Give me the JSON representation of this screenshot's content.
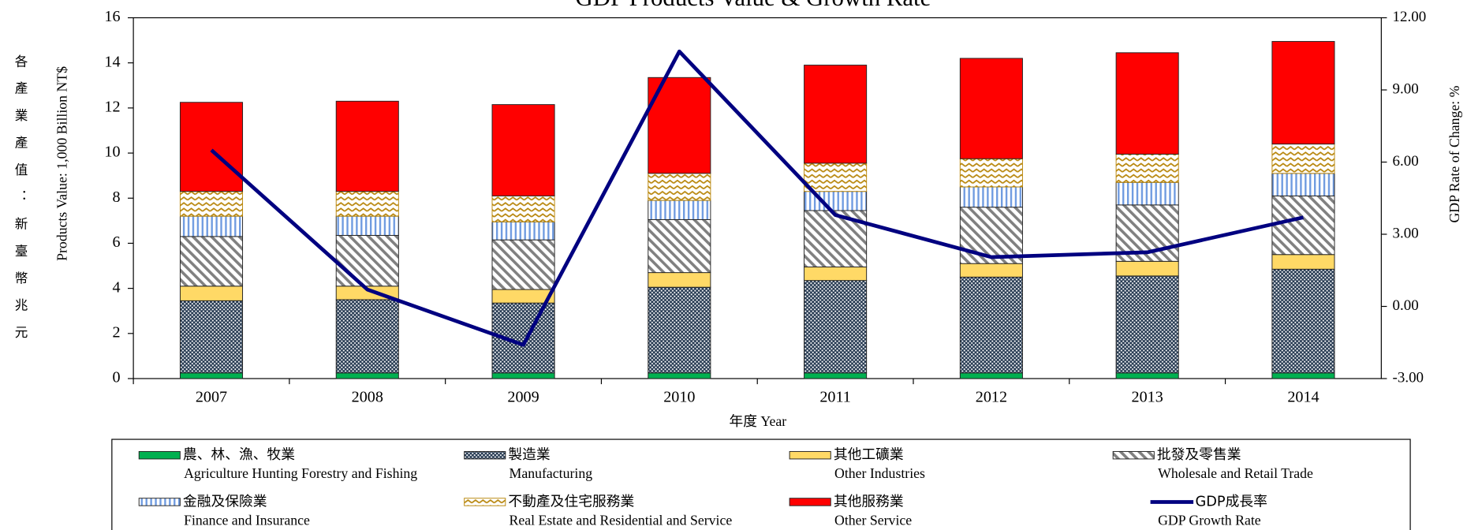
{
  "chart_data": {
    "type": "bar",
    "stacked": true,
    "title": "GDP Products Value & Growth Rate",
    "side_label": "各產業產值：新臺幣兆元",
    "y_label": "Products Value: 1,000 Billion NT$",
    "y2_label": "GDP Rate of Change: %",
    "x_label": "年度 Year",
    "categories": [
      "2007",
      "2008",
      "2009",
      "2010",
      "2011",
      "2012",
      "2013",
      "2014"
    ],
    "ylim": [
      0,
      16
    ],
    "yticks": [
      0,
      2,
      4,
      6,
      8,
      10,
      12,
      14,
      16
    ],
    "y2lim": [
      -3,
      12
    ],
    "y2ticks": [
      {
        "value": -3,
        "label": "-3.00"
      },
      {
        "value": 0,
        "label": "0.00"
      },
      {
        "value": 3,
        "label": "3.00"
      },
      {
        "value": 6,
        "label": "6.00"
      },
      {
        "value": 9,
        "label": "9.00"
      },
      {
        "value": 12,
        "label": "12.00"
      }
    ],
    "series": [
      {
        "name": "農、林、漁、牧業",
        "name_en": "Agriculture Hunting Forestry and Fishing",
        "color": "#00b050",
        "pattern": "solid",
        "values": [
          0.25,
          0.25,
          0.25,
          0.25,
          0.25,
          0.25,
          0.25,
          0.25
        ]
      },
      {
        "name": "製造業",
        "name_en": "Manufacturing",
        "color": "#263a52",
        "pattern": "dots",
        "values": [
          3.2,
          3.25,
          3.1,
          3.8,
          4.1,
          4.25,
          4.3,
          4.6
        ]
      },
      {
        "name": "其他工礦業",
        "name_en": "Other Industries",
        "color": "#ffd966",
        "pattern": "solid",
        "values": [
          0.65,
          0.6,
          0.6,
          0.65,
          0.6,
          0.6,
          0.65,
          0.65
        ]
      },
      {
        "name": "批發及零售業",
        "name_en": "Wholesale and Retail Trade",
        "color": "#808080",
        "pattern": "diagonal",
        "values": [
          2.2,
          2.25,
          2.2,
          2.35,
          2.5,
          2.5,
          2.5,
          2.6
        ]
      },
      {
        "name": "金融及保險業",
        "name_en": "Finance and Insurance",
        "color": "#6f9be0",
        "pattern": "vertical",
        "values": [
          0.9,
          0.85,
          0.8,
          0.85,
          0.85,
          0.9,
          1.0,
          1.0
        ]
      },
      {
        "name": "不動產及住宅服務業",
        "name_en": "Real Estate and Residential and Service",
        "color": "#b8860b",
        "pattern": "zigzag",
        "values": [
          1.1,
          1.1,
          1.15,
          1.2,
          1.25,
          1.25,
          1.25,
          1.3
        ]
      },
      {
        "name": "其他服務業",
        "name_en": "Other Service",
        "color": "#ff0000",
        "pattern": "solid",
        "values": [
          3.95,
          4.0,
          4.05,
          4.25,
          4.35,
          4.45,
          4.5,
          4.55
        ]
      },
      {
        "name": "GDP成長率",
        "name_en": "GDP Growth Rate",
        "color": "#000080",
        "type": "line",
        "axis": "y2",
        "values": [
          6.5,
          0.7,
          -1.6,
          10.6,
          3.8,
          2.05,
          2.25,
          3.7
        ]
      }
    ]
  }
}
